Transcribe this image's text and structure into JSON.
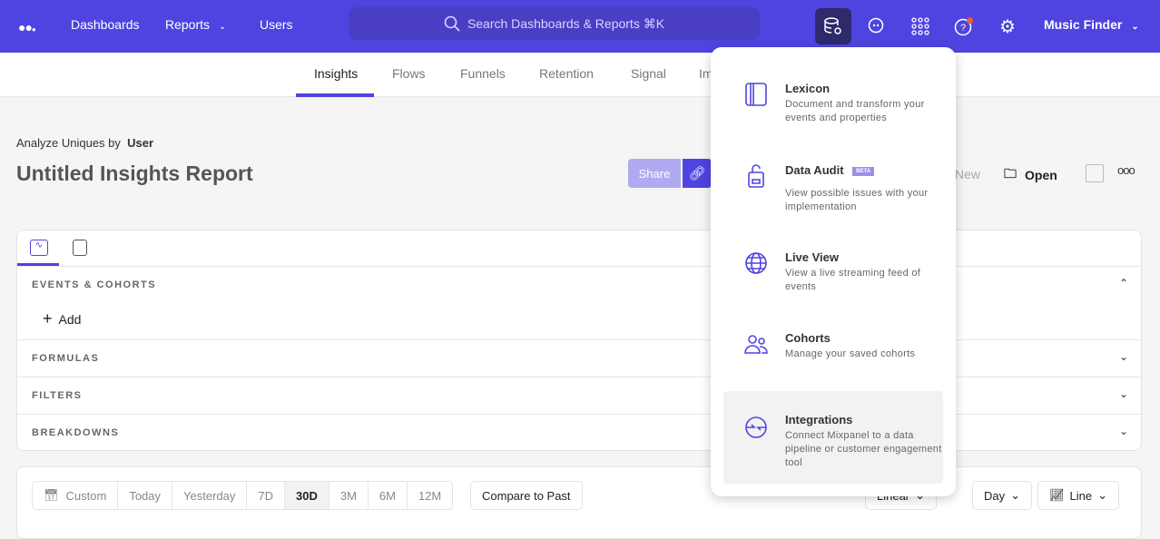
{
  "nav": {
    "logo": "logo-dots",
    "dashboards": "Dashboards",
    "reports": "Reports",
    "users": "Users",
    "search_placeholder": "Search Dashboards & Reports ⌘K",
    "project": "Music Finder",
    "brand_color": "#4f44e0"
  },
  "tabs": [
    "Insights",
    "Flows",
    "Funnels",
    "Retention",
    "Signal",
    "Im"
  ],
  "report": {
    "analyze_label": "Analyze Uniques by",
    "analyze_value": "User",
    "title": "Untitled Insights Report",
    "share": "Share",
    "new": "New",
    "open": "Open"
  },
  "sections": {
    "events": "EVENTS & COHORTS",
    "add": "Add",
    "formulas": "FORMULAS",
    "filters": "FILTERS",
    "breakdowns": "BREAKDOWNS"
  },
  "date_range": {
    "custom": "Custom",
    "options": [
      "Today",
      "Yesterday",
      "7D",
      "30D",
      "3M",
      "6M",
      "12M"
    ],
    "selected": "30D",
    "compare": "Compare to Past"
  },
  "chart_controls": {
    "scale": "Linear",
    "interval": "Day",
    "type": "Line"
  },
  "menu": {
    "items": [
      {
        "title": "Lexicon",
        "desc": "Document and transform your events and properties",
        "icon": "book-icon"
      },
      {
        "title": "Data Audit",
        "badge": "BETA",
        "desc": "View possible issues with your implementation",
        "icon": "audit-icon"
      },
      {
        "title": "Live View",
        "desc": "View a live streaming feed of events",
        "icon": "globe-icon"
      },
      {
        "title": "Cohorts",
        "desc": "Manage your saved cohorts",
        "icon": "users-icon"
      },
      {
        "title": "Integrations",
        "desc": "Connect Mixpanel to a data pipeline or customer engagement tool",
        "icon": "integrations-icon"
      }
    ]
  }
}
